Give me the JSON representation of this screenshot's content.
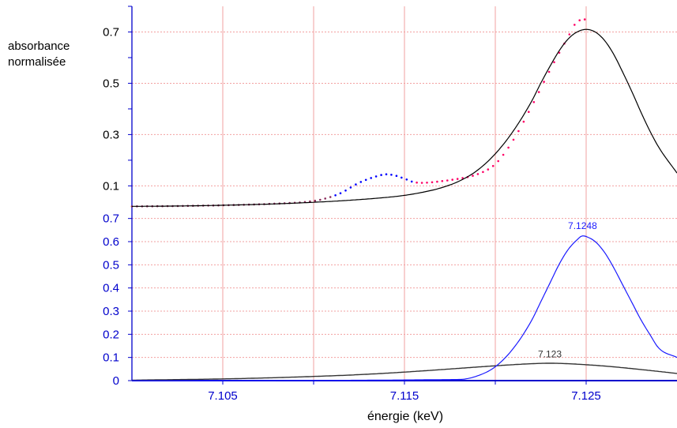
{
  "chart_data": [
    {
      "type": "line",
      "panel": "top",
      "ylabel": "absorbance\nnormalisée",
      "xlim": [
        7.1,
        7.13
      ],
      "ylim": [
        0.018,
        0.8
      ],
      "y_ticks": [
        0.7,
        0.5,
        0.3,
        0.1
      ],
      "y_tick_labels": [
        "0.7",
        "0.5",
        "0.3",
        "0.1"
      ],
      "x_grid": [
        7.105,
        7.11,
        7.115,
        7.12,
        7.125
      ],
      "grid": true,
      "colors": {
        "fit": "#000000",
        "pre_edge_points": "#0000ff",
        "edge_points": "#ff0066"
      },
      "series": [
        {
          "style": "solid",
          "x": [
            7.1,
            7.102,
            7.104,
            7.106,
            7.108,
            7.11,
            7.112,
            7.114,
            7.115,
            7.116,
            7.117,
            7.118,
            7.119,
            7.12,
            7.121,
            7.122,
            7.1225,
            7.123,
            7.1235,
            7.124,
            7.1245,
            7.125,
            7.1255,
            7.126,
            7.1265,
            7.127,
            7.1275,
            7.128,
            7.1285,
            7.129,
            7.13
          ],
          "y": [
            0.02,
            0.021,
            0.023,
            0.026,
            0.03,
            0.036,
            0.044,
            0.055,
            0.063,
            0.075,
            0.092,
            0.118,
            0.16,
            0.225,
            0.315,
            0.43,
            0.5,
            0.565,
            0.625,
            0.672,
            0.7,
            0.71,
            0.7,
            0.668,
            0.615,
            0.545,
            0.47,
            0.39,
            0.315,
            0.25,
            0.15
          ]
        },
        {
          "style": "dotted",
          "x": [
            7.1,
            7.102,
            7.104,
            7.106,
            7.108,
            7.1095,
            7.1105,
            7.1115,
            7.1125,
            7.1135,
            7.114,
            7.1145,
            7.115,
            7.1155,
            7.116,
            7.1165,
            7.117,
            7.118,
            7.119,
            7.12,
            7.121,
            7.122,
            7.123,
            7.124,
            7.1245,
            7.125
          ],
          "y": [
            0.02,
            0.021,
            0.023,
            0.026,
            0.031,
            0.037,
            0.048,
            0.072,
            0.112,
            0.138,
            0.145,
            0.14,
            0.128,
            0.115,
            0.112,
            0.114,
            0.118,
            0.128,
            0.145,
            0.185,
            0.28,
            0.41,
            0.55,
            0.68,
            0.74,
            0.75
          ]
        }
      ]
    },
    {
      "type": "line",
      "panel": "bottom",
      "xlabel": "énergie (keV)",
      "xlim": [
        7.1,
        7.13
      ],
      "ylim": [
        0,
        0.75
      ],
      "y_ticks": [
        0.7,
        0.6,
        0.5,
        0.4,
        0.3,
        0.2,
        0.1,
        0
      ],
      "y_tick_labels": [
        "0.7",
        "0.6",
        "0.5",
        "0.4",
        "0.3",
        "0.2",
        "0.1",
        "0"
      ],
      "x_ticks": [
        7.105,
        7.115,
        7.125
      ],
      "x_tick_labels": [
        "7.105",
        "7.115",
        "7.125"
      ],
      "x_grid": [
        7.105,
        7.11,
        7.115,
        7.12,
        7.125
      ],
      "grid": true,
      "colors": {
        "axis_labels": "#0000cc",
        "peak": "#1a1aff",
        "broad": "#333333"
      },
      "annotations": [
        {
          "text": "7.1248",
          "x": 7.1248,
          "y": 0.655
        },
        {
          "text": "7.123",
          "x": 7.123,
          "y": 0.1
        }
      ],
      "series": [
        {
          "style": "solid",
          "x": [
            7.1,
            7.118,
            7.119,
            7.12,
            7.121,
            7.122,
            7.1225,
            7.123,
            7.1235,
            7.124,
            7.1245,
            7.1248,
            7.125,
            7.1255,
            7.126,
            7.1265,
            7.127,
            7.1275,
            7.128,
            7.1285,
            7.129,
            7.13
          ],
          "y": [
            0,
            0.005,
            0.02,
            0.06,
            0.14,
            0.26,
            0.34,
            0.42,
            0.5,
            0.565,
            0.608,
            0.625,
            0.622,
            0.6,
            0.555,
            0.49,
            0.415,
            0.34,
            0.265,
            0.2,
            0.14,
            0.1
          ]
        },
        {
          "style": "solid",
          "x": [
            7.1,
            7.102,
            7.104,
            7.106,
            7.108,
            7.11,
            7.112,
            7.114,
            7.116,
            7.118,
            7.12,
            7.122,
            7.123,
            7.124,
            7.126,
            7.128,
            7.13
          ],
          "y": [
            0.002,
            0.004,
            0.006,
            0.009,
            0.013,
            0.018,
            0.024,
            0.032,
            0.042,
            0.053,
            0.064,
            0.073,
            0.075,
            0.073,
            0.063,
            0.048,
            0.031
          ]
        }
      ]
    }
  ]
}
